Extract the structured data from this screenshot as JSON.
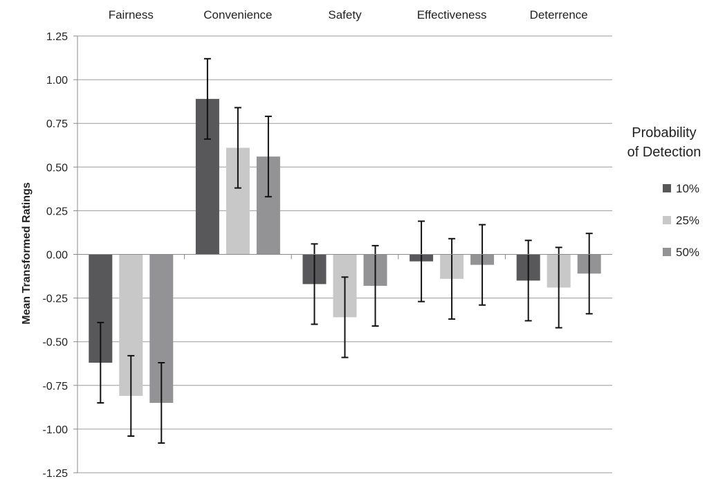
{
  "chart_data": {
    "type": "bar",
    "title": "",
    "xlabel": "",
    "ylabel": "Mean Transformed Ratings",
    "ylim": [
      -1.25,
      1.25
    ],
    "yticks": [
      "1.25",
      "1.00",
      "0.75",
      "0.50",
      "0.25",
      "0.00",
      "-0.25",
      "-0.50",
      "-0.75",
      "-1.00",
      "-1.25"
    ],
    "ytick_values": [
      1.25,
      1.0,
      0.75,
      0.5,
      0.25,
      0.0,
      -0.25,
      -0.5,
      -0.75,
      -1.0,
      -1.25
    ],
    "grid": true,
    "categories": [
      "Fairness",
      "Convenience",
      "Safety",
      "Effectiveness",
      "Deterrence"
    ],
    "category_label_position": "top",
    "legend": {
      "title_lines": [
        "Probability",
        "of Detection"
      ],
      "placement": "right"
    },
    "series": [
      {
        "name": "10%",
        "color": "#58585a",
        "values": [
          -0.62,
          0.89,
          -0.17,
          -0.04,
          -0.15
        ],
        "error": [
          0.23,
          0.23,
          0.23,
          0.23,
          0.23
        ]
      },
      {
        "name": "25%",
        "color": "#c8c8c8",
        "values": [
          -0.81,
          0.61,
          -0.36,
          -0.14,
          -0.19
        ],
        "error": [
          0.23,
          0.23,
          0.23,
          0.23,
          0.23
        ]
      },
      {
        "name": "50%",
        "color": "#939395",
        "values": [
          -0.85,
          0.56,
          -0.18,
          -0.06,
          -0.11
        ],
        "error": [
          0.23,
          0.23,
          0.23,
          0.23,
          0.23
        ]
      }
    ]
  }
}
